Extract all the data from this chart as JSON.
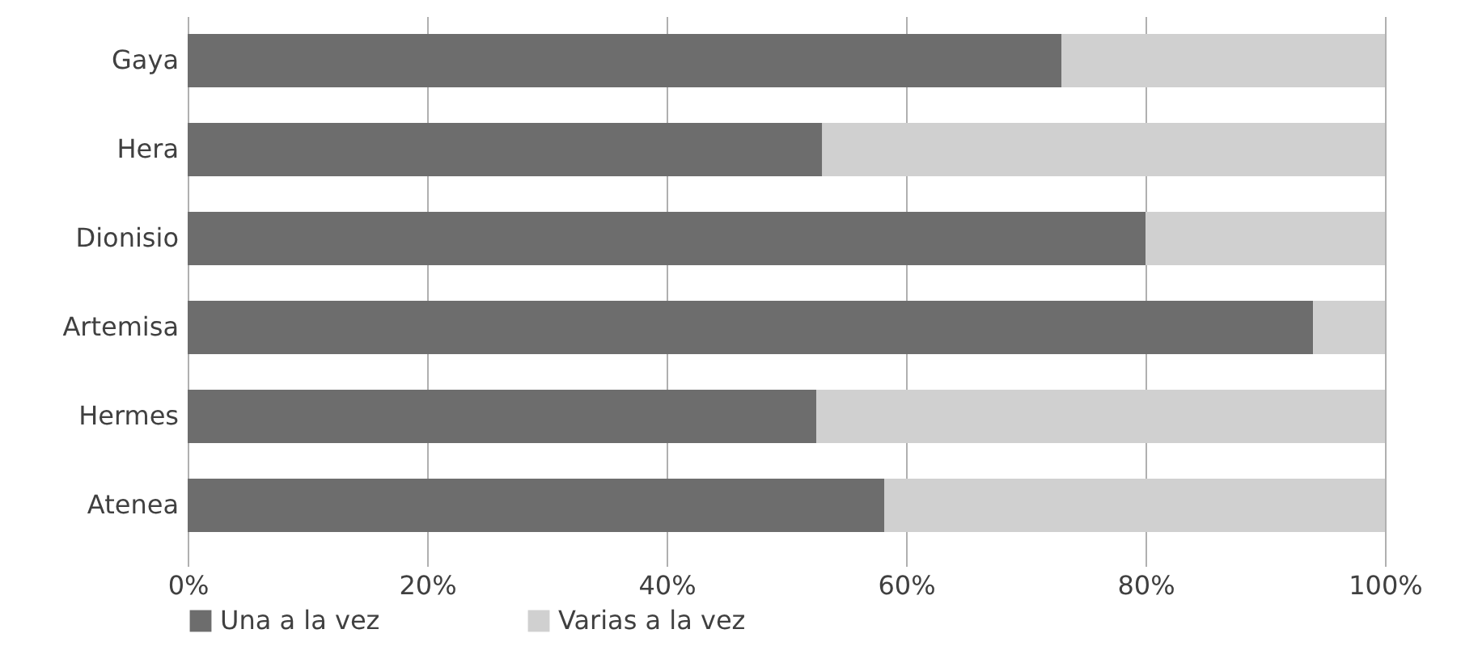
{
  "chart_data": {
    "type": "bar",
    "orientation": "horizontal",
    "stacked": true,
    "categories": [
      "Gaya",
      "Hera",
      "Dionisio",
      "Artemisa",
      "Hermes",
      "Atenea"
    ],
    "series": [
      {
        "name": "Una a la vez",
        "color": "#6d6d6d",
        "values": [
          73,
          53,
          80,
          94,
          52.5,
          58.2
        ]
      },
      {
        "name": "Varias a la vez",
        "color": "#d0d0d0",
        "values": [
          27,
          47,
          20,
          6,
          47.5,
          41.8
        ]
      }
    ],
    "xlim": [
      0,
      100
    ],
    "xticks": [
      {
        "value": 0,
        "label": "0%"
      },
      {
        "value": 20,
        "label": "20%"
      },
      {
        "value": 40,
        "label": "40%"
      },
      {
        "value": 60,
        "label": "60%"
      },
      {
        "value": 80,
        "label": "80%"
      },
      {
        "value": 100,
        "label": "100%"
      }
    ],
    "grid": "x",
    "legend": "bottom"
  }
}
